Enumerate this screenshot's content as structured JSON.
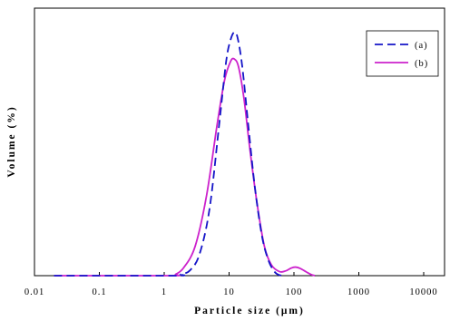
{
  "chart_data": {
    "type": "line",
    "title": "",
    "xlabel": "Particle size (μm)",
    "ylabel": "Volume (%)",
    "xscale": "log",
    "xlim": [
      0.01,
      30000
    ],
    "ylim": [
      0,
      1.0
    ],
    "grid": false,
    "legend_position": "top-right",
    "x_ticks": [
      0.01,
      0.1,
      1,
      10,
      100,
      1000,
      10000
    ],
    "x_tick_labels": [
      "0.01",
      "0.1",
      "1",
      "10",
      "100",
      "1000",
      "10000"
    ],
    "series": [
      {
        "name": "(a)",
        "color": "#1515c8",
        "dash": "dashed",
        "points": [
          [
            0.02,
            0
          ],
          [
            1.4,
            0
          ],
          [
            1.8,
            0.005
          ],
          [
            2.5,
            0.02
          ],
          [
            3.5,
            0.08
          ],
          [
            5,
            0.25
          ],
          [
            7,
            0.56
          ],
          [
            9,
            0.8
          ],
          [
            10.5,
            0.88
          ],
          [
            12,
            0.91
          ],
          [
            13.5,
            0.89
          ],
          [
            16,
            0.78
          ],
          [
            20,
            0.55
          ],
          [
            25,
            0.33
          ],
          [
            32,
            0.15
          ],
          [
            40,
            0.06
          ],
          [
            50,
            0.015
          ],
          [
            60,
            0.002
          ],
          [
            70,
            0
          ]
        ]
      },
      {
        "name": "(b)",
        "color": "#cc22cc",
        "dash": "solid",
        "points": [
          [
            0.02,
            0
          ],
          [
            1.2,
            0
          ],
          [
            1.5,
            0.005
          ],
          [
            2,
            0.03
          ],
          [
            3,
            0.11
          ],
          [
            4.5,
            0.3
          ],
          [
            6.5,
            0.56
          ],
          [
            8.5,
            0.73
          ],
          [
            10.5,
            0.8
          ],
          [
            12,
            0.81
          ],
          [
            14,
            0.78
          ],
          [
            17,
            0.66
          ],
          [
            21,
            0.47
          ],
          [
            27,
            0.27
          ],
          [
            35,
            0.11
          ],
          [
            45,
            0.04
          ],
          [
            60,
            0.015
          ],
          [
            75,
            0.018
          ],
          [
            90,
            0.028
          ],
          [
            105,
            0.032
          ],
          [
            125,
            0.027
          ],
          [
            155,
            0.014
          ],
          [
            185,
            0.004
          ],
          [
            210,
            0
          ]
        ]
      }
    ]
  }
}
